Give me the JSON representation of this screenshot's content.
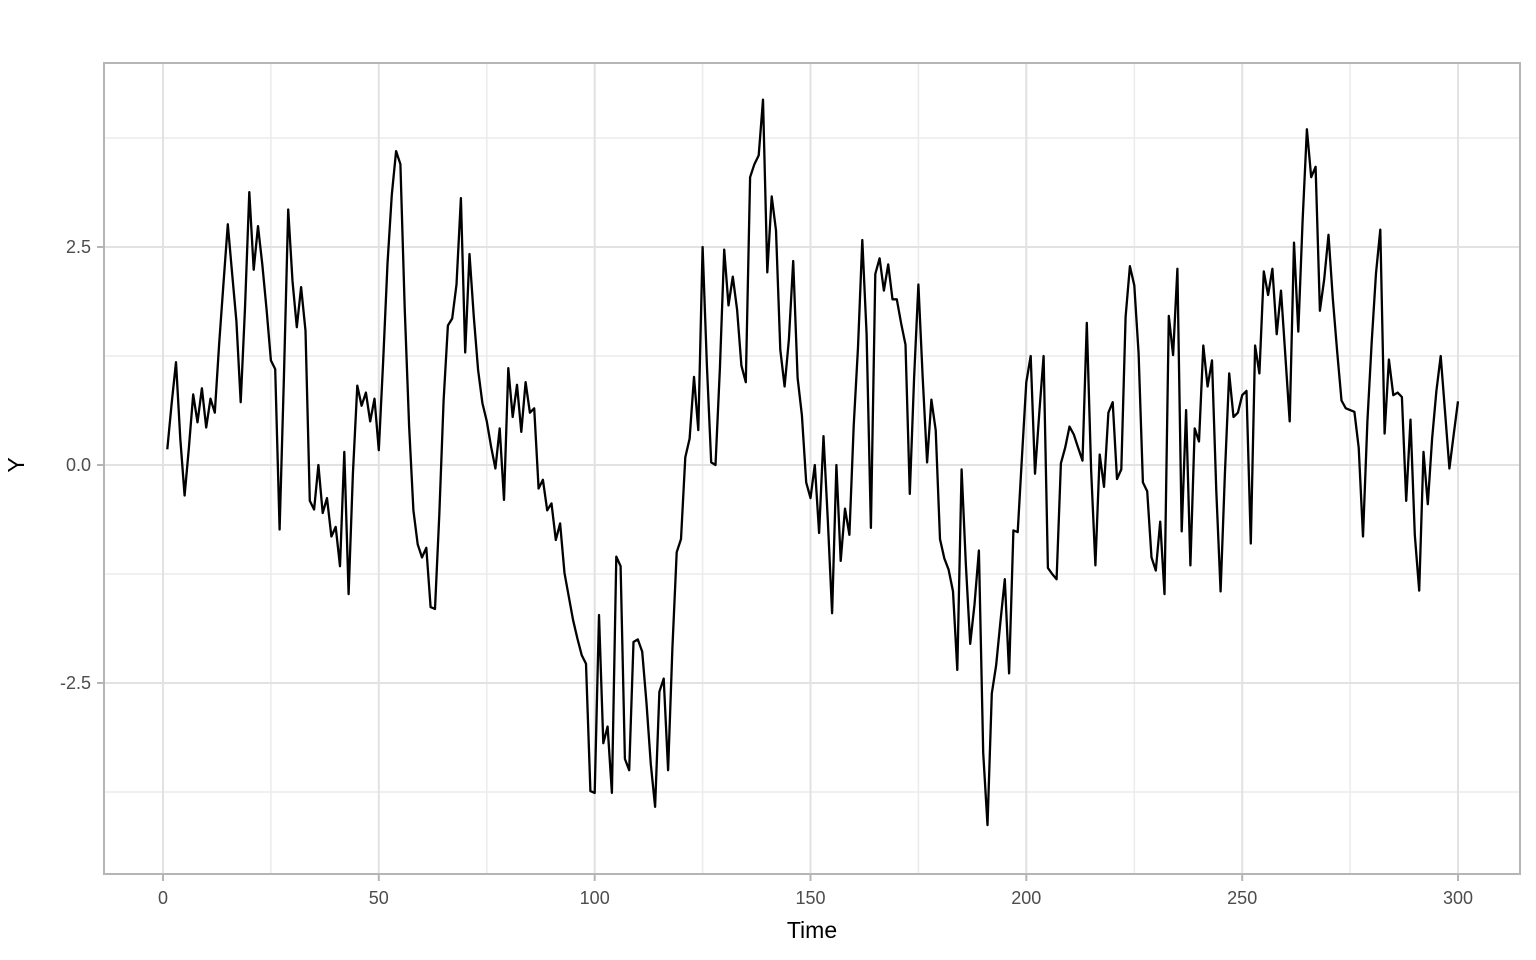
{
  "figure": {
    "background": "#FFFFFF",
    "panel": {
      "background": "#FFFFFF",
      "border_color": "#B5B5B5"
    },
    "grid": {
      "major_color": "#E2E2E2",
      "minor_color": "#ECECEC"
    },
    "axis": {
      "tick_mark_color": "#B5B5B5",
      "tick_label_color": "#4D4D4D",
      "title_color": "#000000",
      "x": {
        "title": "Time",
        "tick_values": [
          0,
          50,
          100,
          150,
          200,
          250,
          300
        ],
        "tick_labels": [
          "0",
          "50",
          "100",
          "150",
          "200",
          "250",
          "300"
        ],
        "minor_tick_values": [
          25,
          75,
          125,
          175,
          225,
          275
        ]
      },
      "y": {
        "title": "Y",
        "tick_values": [
          -2.5,
          0,
          2.5
        ],
        "tick_labels": [
          "-2.5",
          "0.0",
          "2.5"
        ],
        "minor_tick_values": [
          -3.75,
          -1.25,
          1.25,
          3.75
        ]
      }
    }
  },
  "chart_data": {
    "type": "line",
    "title": "",
    "xlabel": "Time",
    "ylabel": "Y",
    "legend": "none",
    "grid": true,
    "line_color": "#000000",
    "xlim": [
      -13.7,
      314.3
    ],
    "ylim": [
      -4.69,
      4.61
    ],
    "x_major_ticks": [
      0,
      50,
      100,
      150,
      200,
      250,
      300
    ],
    "y_major_ticks": [
      -2.5,
      0,
      2.5
    ],
    "x_start": 1,
    "x_step": 1,
    "n_points": 300,
    "values": [
      0.18,
      0.7,
      1.18,
      0.3,
      -0.35,
      0.2,
      0.81,
      0.49,
      0.88,
      0.43,
      0.76,
      0.6,
      1.38,
      2.07,
      2.76,
      2.2,
      1.65,
      0.72,
      1.8,
      3.13,
      2.24,
      2.74,
      2.3,
      1.78,
      1.2,
      1.1,
      -0.74,
      1.0,
      2.93,
      2.11,
      1.58,
      2.04,
      1.54,
      -0.41,
      -0.51,
      0.0,
      -0.55,
      -0.38,
      -0.82,
      -0.71,
      -1.16,
      0.15,
      -1.48,
      -0.1,
      0.91,
      0.68,
      0.83,
      0.5,
      0.76,
      0.17,
      1.2,
      2.31,
      3.1,
      3.6,
      3.45,
      1.8,
      0.45,
      -0.52,
      -0.91,
      -1.06,
      -0.95,
      -1.63,
      -1.65,
      -0.57,
      0.74,
      1.6,
      1.68,
      2.07,
      3.06,
      1.29,
      2.42,
      1.7,
      1.09,
      0.71,
      0.5,
      0.21,
      -0.04,
      0.42,
      -0.4,
      1.11,
      0.55,
      0.92,
      0.38,
      0.95,
      0.6,
      0.65,
      -0.27,
      -0.17,
      -0.52,
      -0.44,
      -0.86,
      -0.67,
      -1.24,
      -1.51,
      -1.78,
      -1.99,
      -2.18,
      -2.28,
      -3.74,
      -3.76,
      -1.72,
      -3.19,
      -3.0,
      -3.76,
      -1.05,
      -1.16,
      -3.37,
      -3.5,
      -2.03,
      -2.0,
      -2.14,
      -2.73,
      -3.43,
      -3.92,
      -2.6,
      -2.45,
      -3.5,
      -2.1,
      -1.0,
      -0.85,
      0.09,
      0.3,
      1.01,
      0.4,
      2.5,
      1.14,
      0.03,
      0.0,
      1.11,
      2.47,
      1.83,
      2.16,
      1.78,
      1.14,
      0.95,
      3.3,
      3.45,
      3.55,
      4.19,
      2.21,
      3.08,
      2.69,
      1.32,
      0.9,
      1.44,
      2.34,
      1.0,
      0.57,
      -0.2,
      -0.38,
      0.0,
      -0.78,
      0.33,
      -0.63,
      -1.7,
      0.0,
      -1.1,
      -0.5,
      -0.8,
      0.45,
      1.35,
      2.58,
      1.5,
      -0.72,
      2.19,
      2.37,
      2.0,
      2.3,
      1.9,
      1.9,
      1.62,
      1.38,
      -0.33,
      1.0,
      2.07,
      1.0,
      0.03,
      0.75,
      0.4,
      -0.85,
      -1.07,
      -1.2,
      -1.45,
      -2.35,
      -0.05,
      -1.15,
      -2.05,
      -1.6,
      -0.98,
      -3.3,
      -4.13,
      -2.62,
      -2.3,
      -1.8,
      -1.31,
      -2.39,
      -0.75,
      -0.77,
      0.1,
      0.95,
      1.25,
      -0.1,
      0.6,
      1.25,
      -1.18,
      -1.25,
      -1.31,
      0.02,
      0.2,
      0.44,
      0.35,
      0.2,
      0.05,
      1.63,
      -0.05,
      -1.15,
      0.12,
      -0.25,
      0.6,
      0.72,
      -0.16,
      -0.05,
      1.7,
      2.28,
      2.06,
      1.28,
      -0.2,
      -0.3,
      -1.06,
      -1.21,
      -0.65,
      -1.48,
      1.71,
      1.26,
      2.25,
      -0.76,
      0.63,
      -1.15,
      0.42,
      0.27,
      1.37,
      0.9,
      1.2,
      -0.3,
      -1.45,
      -0.1,
      1.05,
      0.55,
      0.6,
      0.8,
      0.85,
      -0.9,
      1.37,
      1.05,
      2.22,
      1.95,
      2.25,
      1.5,
      2.0,
      1.26,
      0.5,
      2.55,
      1.53,
      2.8,
      3.85,
      3.3,
      3.42,
      1.77,
      2.13,
      2.64,
      1.91,
      1.31,
      0.74,
      0.65,
      0.63,
      0.61,
      0.2,
      -0.82,
      0.5,
      1.41,
      2.2,
      2.7,
      0.36,
      1.21,
      0.8,
      0.83,
      0.78,
      -0.41,
      0.52,
      -0.8,
      -1.44,
      0.15,
      -0.45,
      0.3,
      0.85,
      1.25,
      0.6,
      -0.04,
      0.35,
      0.73
    ]
  }
}
